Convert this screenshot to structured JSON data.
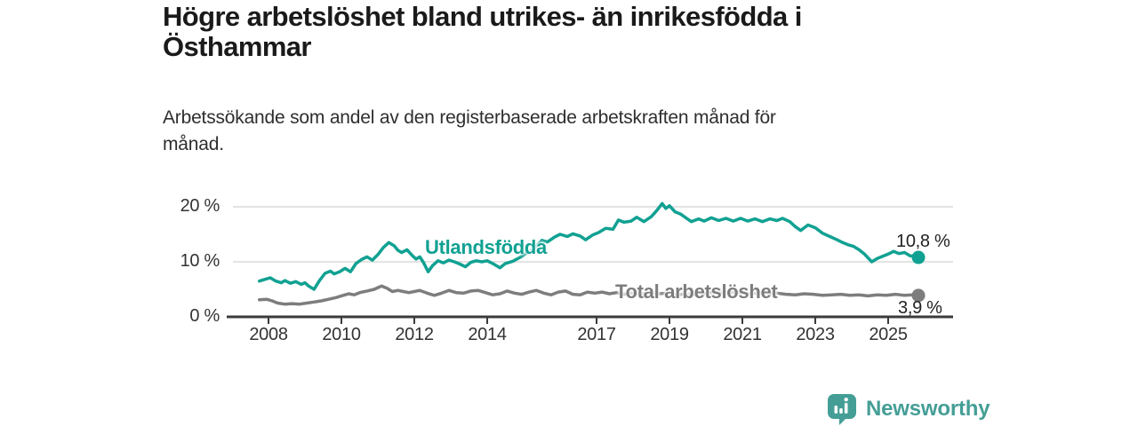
{
  "header": {
    "title_lines": [
      "Högre arbetslöshet bland utrikes- än inrikesfödda i",
      "Östhammar"
    ],
    "subtitle_lines": [
      "Arbetssökande som andel av den registerbaserade arbetskraften månad för",
      "månad."
    ]
  },
  "chart_data": {
    "type": "line",
    "title": "Högre arbetslöshet bland utrikes- än inrikesfödda i Östhammar",
    "subtitle": "Arbetssökande som andel av den registerbaserade arbetskraften månad för månad.",
    "x_unit": "decimal year (monthly data)",
    "x_range": [
      2007.75,
      2025.83
    ],
    "ylim": [
      0,
      22
    ],
    "grid": "horizontal gridlines at 10 % and 20 %",
    "legend_position": "inline labels on lines",
    "x_ticks": [
      {
        "value": 2008,
        "label": "2008"
      },
      {
        "value": 2010,
        "label": "2010"
      },
      {
        "value": 2012,
        "label": "2012"
      },
      {
        "value": 2014,
        "label": "2014"
      },
      {
        "value": 2017,
        "label": "2017"
      },
      {
        "value": 2019,
        "label": "2019"
      },
      {
        "value": 2021,
        "label": "2021"
      },
      {
        "value": 2023,
        "label": "2023"
      },
      {
        "value": 2025,
        "label": "2025"
      }
    ],
    "y_ticks": [
      {
        "value": 0,
        "label": "0 %"
      },
      {
        "value": 10,
        "label": "10 %"
      },
      {
        "value": 20,
        "label": "20 %"
      }
    ],
    "series": [
      {
        "name": "Utlandsfödda",
        "color": "#11a192",
        "end_value": 10.8,
        "end_label": "10,8 %",
        "points": [
          [
            2007.75,
            6.5
          ],
          [
            2007.9,
            6.8
          ],
          [
            2008.05,
            7.1
          ],
          [
            2008.2,
            6.5
          ],
          [
            2008.35,
            6.2
          ],
          [
            2008.45,
            6.6
          ],
          [
            2008.6,
            6.1
          ],
          [
            2008.75,
            6.4
          ],
          [
            2008.9,
            5.9
          ],
          [
            2009.0,
            6.2
          ],
          [
            2009.1,
            5.6
          ],
          [
            2009.25,
            5.0
          ],
          [
            2009.4,
            6.6
          ],
          [
            2009.55,
            7.9
          ],
          [
            2009.7,
            8.3
          ],
          [
            2009.8,
            7.8
          ],
          [
            2009.95,
            8.2
          ],
          [
            2010.1,
            8.8
          ],
          [
            2010.25,
            8.2
          ],
          [
            2010.4,
            9.7
          ],
          [
            2010.55,
            10.4
          ],
          [
            2010.7,
            10.9
          ],
          [
            2010.85,
            10.3
          ],
          [
            2011.0,
            11.3
          ],
          [
            2011.15,
            12.6
          ],
          [
            2011.3,
            13.5
          ],
          [
            2011.45,
            12.9
          ],
          [
            2011.55,
            12.1
          ],
          [
            2011.65,
            11.7
          ],
          [
            2011.8,
            12.2
          ],
          [
            2011.95,
            11.1
          ],
          [
            2012.05,
            10.5
          ],
          [
            2012.15,
            10.9
          ],
          [
            2012.25,
            9.9
          ],
          [
            2012.38,
            8.2
          ],
          [
            2012.5,
            9.3
          ],
          [
            2012.65,
            10.2
          ],
          [
            2012.8,
            9.8
          ],
          [
            2012.95,
            10.3
          ],
          [
            2013.1,
            10.0
          ],
          [
            2013.25,
            9.6
          ],
          [
            2013.4,
            9.1
          ],
          [
            2013.55,
            9.9
          ],
          [
            2013.7,
            10.2
          ],
          [
            2013.85,
            10.0
          ],
          [
            2014.0,
            10.2
          ],
          [
            2014.15,
            9.7
          ],
          [
            2014.35,
            8.9
          ],
          [
            2014.5,
            9.7
          ],
          [
            2014.7,
            10.1
          ],
          [
            2014.9,
            10.8
          ],
          [
            2015.1,
            11.7
          ],
          [
            2015.3,
            12.5
          ],
          [
            2015.5,
            13.9
          ],
          [
            2015.65,
            13.6
          ],
          [
            2015.85,
            14.5
          ],
          [
            2016.0,
            15.0
          ],
          [
            2016.2,
            14.6
          ],
          [
            2016.35,
            15.1
          ],
          [
            2016.55,
            14.7
          ],
          [
            2016.7,
            14.0
          ],
          [
            2016.9,
            14.9
          ],
          [
            2017.05,
            15.3
          ],
          [
            2017.25,
            16.1
          ],
          [
            2017.45,
            15.9
          ],
          [
            2017.6,
            17.6
          ],
          [
            2017.75,
            17.2
          ],
          [
            2017.95,
            17.4
          ],
          [
            2018.1,
            18.1
          ],
          [
            2018.3,
            17.3
          ],
          [
            2018.5,
            18.2
          ],
          [
            2018.65,
            19.3
          ],
          [
            2018.8,
            20.6
          ],
          [
            2018.9,
            19.7
          ],
          [
            2019.0,
            20.2
          ],
          [
            2019.15,
            19.1
          ],
          [
            2019.3,
            18.7
          ],
          [
            2019.45,
            18.0
          ],
          [
            2019.6,
            17.3
          ],
          [
            2019.8,
            17.8
          ],
          [
            2019.95,
            17.4
          ],
          [
            2020.15,
            18.0
          ],
          [
            2020.35,
            17.5
          ],
          [
            2020.55,
            17.9
          ],
          [
            2020.75,
            17.4
          ],
          [
            2020.95,
            17.9
          ],
          [
            2021.15,
            17.4
          ],
          [
            2021.35,
            17.8
          ],
          [
            2021.55,
            17.3
          ],
          [
            2021.75,
            17.8
          ],
          [
            2021.95,
            17.5
          ],
          [
            2022.1,
            17.9
          ],
          [
            2022.3,
            17.3
          ],
          [
            2022.45,
            16.4
          ],
          [
            2022.6,
            15.7
          ],
          [
            2022.8,
            16.7
          ],
          [
            2023.0,
            16.2
          ],
          [
            2023.2,
            15.2
          ],
          [
            2023.4,
            14.6
          ],
          [
            2023.6,
            14.0
          ],
          [
            2023.75,
            13.5
          ],
          [
            2023.9,
            13.1
          ],
          [
            2024.05,
            12.8
          ],
          [
            2024.2,
            12.2
          ],
          [
            2024.35,
            11.4
          ],
          [
            2024.55,
            10.0
          ],
          [
            2024.7,
            10.6
          ],
          [
            2024.85,
            11.0
          ],
          [
            2025.0,
            11.4
          ],
          [
            2025.15,
            11.9
          ],
          [
            2025.3,
            11.5
          ],
          [
            2025.45,
            11.7
          ],
          [
            2025.6,
            11.1
          ],
          [
            2025.75,
            11.0
          ],
          [
            2025.83,
            10.8
          ]
        ]
      },
      {
        "name": "Total arbetslöshet",
        "color": "#7d7d7d",
        "end_value": 3.9,
        "end_label": "3,9 %",
        "points": [
          [
            2007.75,
            3.1
          ],
          [
            2007.95,
            3.2
          ],
          [
            2008.1,
            2.9
          ],
          [
            2008.25,
            2.5
          ],
          [
            2008.45,
            2.3
          ],
          [
            2008.65,
            2.4
          ],
          [
            2008.85,
            2.3
          ],
          [
            2009.05,
            2.5
          ],
          [
            2009.25,
            2.7
          ],
          [
            2009.45,
            2.9
          ],
          [
            2009.65,
            3.2
          ],
          [
            2009.85,
            3.5
          ],
          [
            2010.05,
            3.9
          ],
          [
            2010.2,
            4.2
          ],
          [
            2010.35,
            4.0
          ],
          [
            2010.5,
            4.4
          ],
          [
            2010.7,
            4.7
          ],
          [
            2010.9,
            5.0
          ],
          [
            2011.0,
            5.3
          ],
          [
            2011.1,
            5.6
          ],
          [
            2011.25,
            5.2
          ],
          [
            2011.4,
            4.6
          ],
          [
            2011.55,
            4.8
          ],
          [
            2011.7,
            4.6
          ],
          [
            2011.85,
            4.4
          ],
          [
            2012.0,
            4.6
          ],
          [
            2012.15,
            4.8
          ],
          [
            2012.35,
            4.3
          ],
          [
            2012.55,
            3.9
          ],
          [
            2012.75,
            4.3
          ],
          [
            2012.95,
            4.8
          ],
          [
            2013.15,
            4.4
          ],
          [
            2013.35,
            4.3
          ],
          [
            2013.55,
            4.7
          ],
          [
            2013.75,
            4.8
          ],
          [
            2013.95,
            4.4
          ],
          [
            2014.15,
            4.0
          ],
          [
            2014.35,
            4.2
          ],
          [
            2014.55,
            4.7
          ],
          [
            2014.75,
            4.3
          ],
          [
            2014.95,
            4.1
          ],
          [
            2015.15,
            4.5
          ],
          [
            2015.35,
            4.8
          ],
          [
            2015.55,
            4.3
          ],
          [
            2015.75,
            4.0
          ],
          [
            2015.95,
            4.5
          ],
          [
            2016.15,
            4.7
          ],
          [
            2016.35,
            4.1
          ],
          [
            2016.55,
            4.0
          ],
          [
            2016.75,
            4.5
          ],
          [
            2016.95,
            4.3
          ],
          [
            2017.15,
            4.5
          ],
          [
            2017.35,
            4.2
          ],
          [
            2017.55,
            4.4
          ],
          [
            2017.75,
            4.1
          ],
          [
            2017.95,
            4.3
          ],
          [
            2018.2,
            4.1
          ],
          [
            2018.45,
            4.4
          ],
          [
            2018.7,
            4.2
          ],
          [
            2018.95,
            4.3
          ],
          [
            2019.2,
            4.0
          ],
          [
            2019.45,
            4.2
          ],
          [
            2019.7,
            4.0
          ],
          [
            2019.95,
            4.2
          ],
          [
            2020.2,
            4.5
          ],
          [
            2020.45,
            4.3
          ],
          [
            2020.7,
            4.5
          ],
          [
            2020.95,
            4.4
          ],
          [
            2021.2,
            4.2
          ],
          [
            2021.45,
            4.4
          ],
          [
            2021.7,
            4.2
          ],
          [
            2021.95,
            4.3
          ],
          [
            2022.2,
            4.1
          ],
          [
            2022.45,
            4.0
          ],
          [
            2022.7,
            4.2
          ],
          [
            2022.95,
            4.1
          ],
          [
            2023.2,
            3.9
          ],
          [
            2023.45,
            4.0
          ],
          [
            2023.7,
            4.1
          ],
          [
            2023.95,
            3.9
          ],
          [
            2024.2,
            4.0
          ],
          [
            2024.45,
            3.8
          ],
          [
            2024.7,
            4.0
          ],
          [
            2024.95,
            3.9
          ],
          [
            2025.2,
            4.1
          ],
          [
            2025.45,
            3.9
          ],
          [
            2025.65,
            4.0
          ],
          [
            2025.83,
            3.9
          ]
        ]
      }
    ]
  },
  "colors": {
    "background": "#ffffff",
    "accent_teal": "#11a192",
    "series_gray": "#7d7d7d",
    "gridline": "#dadada",
    "axis": "#3b3b3b",
    "title_text": "#1a1a1a",
    "body_text": "#2e2e2e",
    "tick_text": "#333333",
    "logo_teal": "#449e96"
  },
  "footer": {
    "brand": "Newsworthy",
    "logo_icon": "bar-chart-speech-bubble-icon"
  }
}
